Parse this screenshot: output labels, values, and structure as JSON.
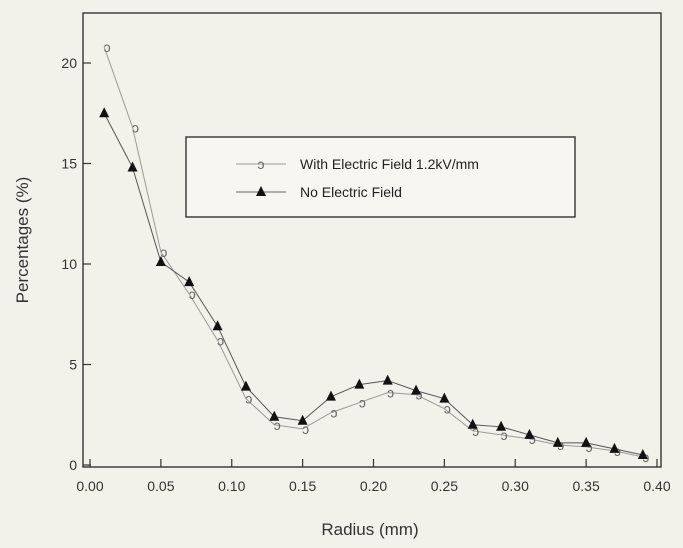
{
  "chart_data": {
    "type": "line",
    "xlabel": "Radius (mm)",
    "ylabel": "Percentages (%)",
    "xlim": [
      0.0,
      0.4
    ],
    "ylim": [
      0,
      22
    ],
    "x_ticks": [
      "0.00",
      "0.05",
      "0.10",
      "0.15",
      "0.20",
      "0.25",
      "0.30",
      "0.35",
      "0.40"
    ],
    "y_ticks": [
      "0",
      "5",
      "10",
      "15",
      "20"
    ],
    "grid": false,
    "legend_position": "upper-middle",
    "series": [
      {
        "name": "With Electric Field 1.2kV/mm",
        "marker": "open-circle",
        "color": "#888888",
        "x": [
          0.01,
          0.03,
          0.05,
          0.07,
          0.09,
          0.11,
          0.13,
          0.15,
          0.17,
          0.19,
          0.21,
          0.23,
          0.25,
          0.27,
          0.29,
          0.31,
          0.33,
          0.35,
          0.37,
          0.39
        ],
        "y": [
          20.8,
          16.8,
          10.6,
          8.5,
          6.2,
          3.3,
          2.0,
          1.8,
          2.6,
          3.1,
          3.6,
          3.5,
          2.8,
          1.7,
          1.5,
          1.3,
          1.0,
          0.9,
          0.7,
          0.4
        ]
      },
      {
        "name": "No Electric Field",
        "marker": "filled-triangle",
        "color": "#111111",
        "x": [
          0.01,
          0.03,
          0.05,
          0.07,
          0.09,
          0.11,
          0.13,
          0.15,
          0.17,
          0.19,
          0.21,
          0.23,
          0.25,
          0.27,
          0.29,
          0.31,
          0.33,
          0.35,
          0.37,
          0.39
        ],
        "y": [
          17.5,
          14.8,
          10.1,
          9.1,
          6.9,
          3.9,
          2.4,
          2.2,
          3.4,
          4.0,
          4.2,
          3.7,
          3.3,
          2.0,
          1.9,
          1.5,
          1.1,
          1.1,
          0.8,
          0.5
        ]
      }
    ]
  }
}
